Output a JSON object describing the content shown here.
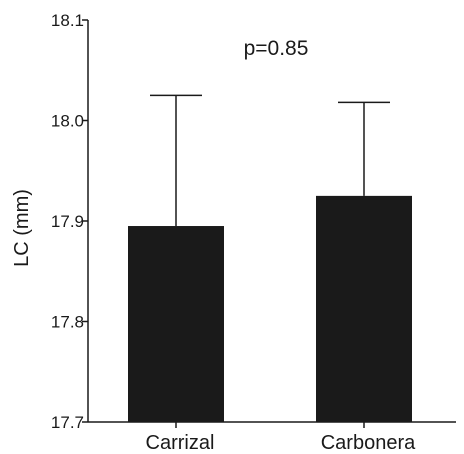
{
  "chart_data": {
    "type": "bar",
    "title": "",
    "xlabel": "",
    "ylabel": "LC (mm)",
    "ylim": [
      17.7,
      18.1
    ],
    "yticks": [
      "17.7",
      "17.8",
      "17.9",
      "18.0",
      "18.1"
    ],
    "categories": [
      "Carrizal",
      "Carbonera"
    ],
    "values": [
      17.895,
      17.925
    ],
    "error_upper": [
      18.025,
      18.018
    ],
    "annotation": "p=0.85",
    "grid": false,
    "bar_color": "#1a1a1a"
  }
}
